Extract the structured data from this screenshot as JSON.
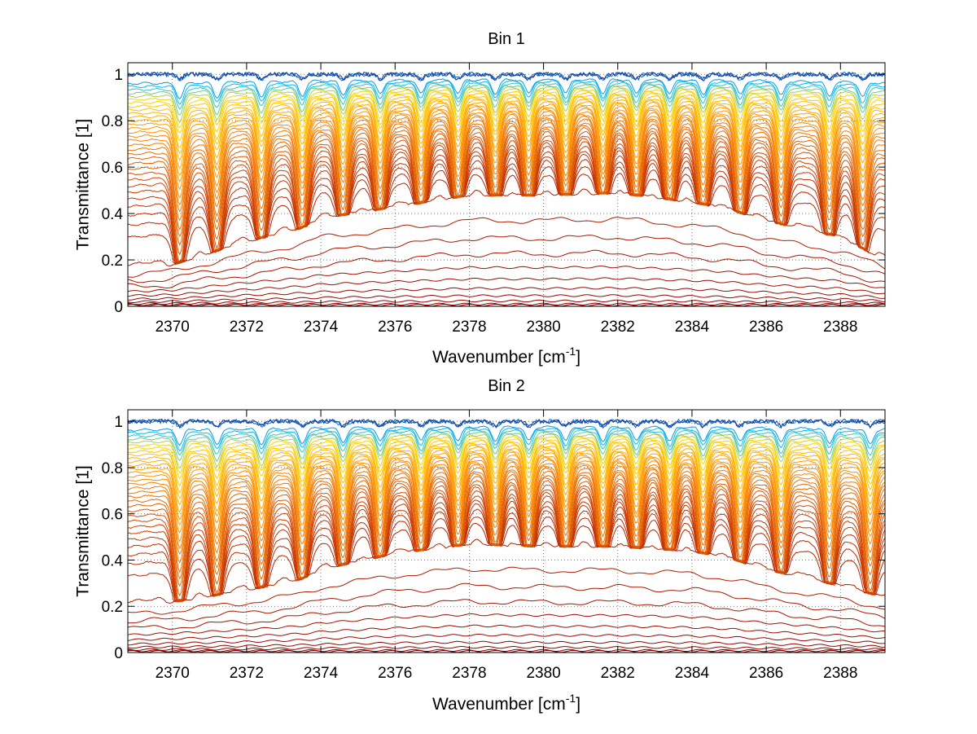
{
  "chart_data": [
    {
      "type": "line",
      "title": "Bin 1",
      "xlabel": "Wavenumber [cm",
      "xlabel_sup": "-1",
      "xlabel_tail": "]",
      "ylabel": "Transmittance [1]",
      "xlim": [
        2368.8,
        2389.2
      ],
      "ylim": [
        0,
        1.05
      ],
      "xticks": [
        2370,
        2372,
        2374,
        2376,
        2378,
        2380,
        2382,
        2384,
        2386,
        2388
      ],
      "yticks": [
        0,
        0.2,
        0.4,
        0.6,
        0.8,
        1
      ],
      "grid": true,
      "line_count": 46,
      "line_dips_at": [
        2370.2,
        2371.2,
        2372.4,
        2373.5,
        2374.6,
        2375.6,
        2376.7,
        2377.7,
        2378.7,
        2379.6,
        2380.6,
        2381.6,
        2382.5,
        2383.4,
        2384.3,
        2385.3,
        2386.4,
        2387.7,
        2388.6
      ],
      "envelope_x": [
        2368.8,
        2370,
        2372,
        2373.5,
        2374,
        2376,
        2378,
        2380,
        2382,
        2384,
        2385,
        2386,
        2388,
        2389.2
      ],
      "envelope_y": [
        0.18,
        0.2,
        0.3,
        0.36,
        0.4,
        0.45,
        0.5,
        0.5,
        0.51,
        0.47,
        0.44,
        0.39,
        0.32,
        0.22
      ],
      "colors": [
        "#8b0000",
        "#b22200",
        "#d04000",
        "#e86a00",
        "#ff8c00",
        "#ffb000",
        "#ffd700",
        "#00bfff",
        "#1e3c9a"
      ]
    },
    {
      "type": "line",
      "title": "Bin 2",
      "xlabel": "Wavenumber [cm",
      "xlabel_sup": "-1",
      "xlabel_tail": "]",
      "ylabel": "Transmittance [1]",
      "xlim": [
        2368.8,
        2389.2
      ],
      "ylim": [
        0,
        1.05
      ],
      "xticks": [
        2370,
        2372,
        2374,
        2376,
        2378,
        2380,
        2382,
        2384,
        2386,
        2388
      ],
      "yticks": [
        0,
        0.2,
        0.4,
        0.6,
        0.8,
        1
      ],
      "grid": true,
      "line_count": 46,
      "line_dips_at": [
        2370.2,
        2371.2,
        2372.4,
        2373.5,
        2374.6,
        2375.6,
        2376.7,
        2377.7,
        2378.7,
        2379.6,
        2380.6,
        2381.6,
        2382.5,
        2383.4,
        2384.3,
        2385.3,
        2386.4,
        2387.7,
        2388.8
      ],
      "envelope_x": [
        2368.8,
        2370,
        2372,
        2373.5,
        2374,
        2376,
        2378,
        2380,
        2382,
        2384,
        2385,
        2386,
        2388,
        2389.2
      ],
      "envelope_y": [
        0.22,
        0.24,
        0.29,
        0.34,
        0.38,
        0.45,
        0.49,
        0.48,
        0.48,
        0.46,
        0.43,
        0.38,
        0.31,
        0.26
      ],
      "colors": [
        "#8b0000",
        "#b22200",
        "#d04000",
        "#e86a00",
        "#ff8c00",
        "#ffb000",
        "#ffd700",
        "#00bfff",
        "#1e3c9a"
      ]
    }
  ]
}
